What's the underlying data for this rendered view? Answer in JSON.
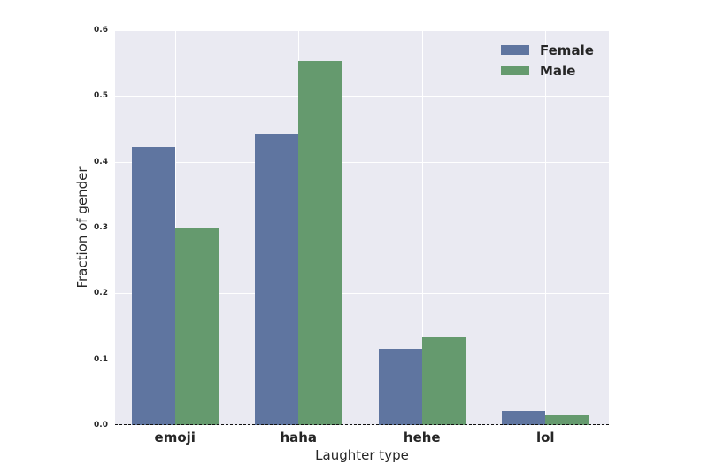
{
  "chart_data": {
    "type": "bar",
    "title": "",
    "xlabel": "Laughter type",
    "ylabel": "Fraction of gender",
    "categories": [
      "emoji",
      "haha",
      "hehe",
      "lol"
    ],
    "series": [
      {
        "name": "Female",
        "color": "#5f75a0",
        "values": [
          0.423,
          0.443,
          0.116,
          0.022
        ]
      },
      {
        "name": "Male",
        "color": "#659a6e",
        "values": [
          0.3,
          0.553,
          0.133,
          0.015
        ]
      }
    ],
    "ylim": [
      0.0,
      0.6
    ],
    "yticks": [
      "0.0",
      "0.1",
      "0.2",
      "0.3",
      "0.4",
      "0.5",
      "0.6"
    ],
    "grid": true,
    "legend_position": "upper right",
    "background": "#eaeaf2"
  }
}
